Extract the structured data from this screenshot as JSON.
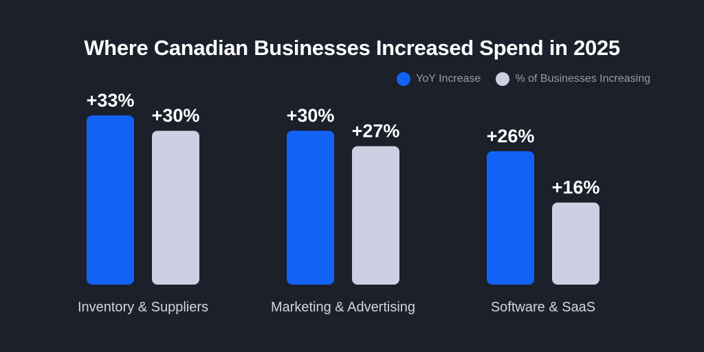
{
  "chart_data": {
    "type": "bar",
    "title": "Where Canadian Businesses Increased Spend in 2025",
    "categories": [
      "Inventory & Suppliers",
      "Marketing & Advertising",
      "Software & SaaS"
    ],
    "series": [
      {
        "name": "YoY Increase",
        "color": "#1262f5",
        "values": [
          33,
          30,
          26
        ]
      },
      {
        "name": "% of Businesses Increasing",
        "color": "#cdd0e2",
        "values": [
          30,
          27,
          16
        ]
      }
    ],
    "value_labels": [
      [
        "+33%",
        "+30%",
        "+26%"
      ],
      [
        "+30%",
        "+27%",
        "+16%"
      ]
    ],
    "legend_position": "top-right",
    "grid": false,
    "ylim": [
      0,
      40
    ]
  }
}
